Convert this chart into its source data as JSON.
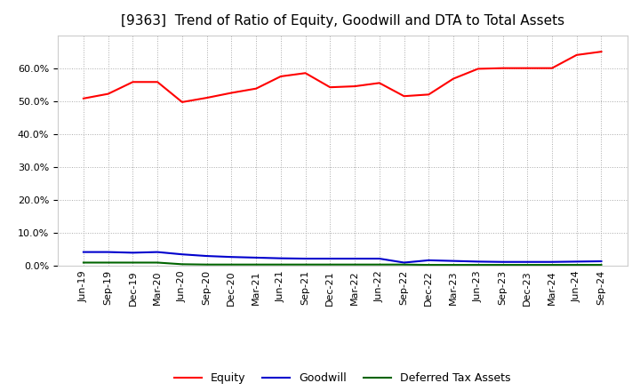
{
  "title": "[9363]  Trend of Ratio of Equity, Goodwill and DTA to Total Assets",
  "x_labels": [
    "Jun-19",
    "Sep-19",
    "Dec-19",
    "Mar-20",
    "Jun-20",
    "Sep-20",
    "Dec-20",
    "Mar-21",
    "Jun-21",
    "Sep-21",
    "Dec-21",
    "Mar-22",
    "Jun-22",
    "Sep-22",
    "Dec-22",
    "Mar-23",
    "Jun-23",
    "Sep-23",
    "Dec-23",
    "Mar-24",
    "Jun-24",
    "Sep-24"
  ],
  "equity": [
    0.508,
    0.522,
    0.558,
    0.558,
    0.497,
    0.51,
    0.525,
    0.538,
    0.575,
    0.585,
    0.542,
    0.545,
    0.555,
    0.515,
    0.52,
    0.568,
    0.598,
    0.6,
    0.6,
    0.6,
    0.64,
    0.65
  ],
  "goodwill": [
    0.042,
    0.042,
    0.04,
    0.042,
    0.035,
    0.03,
    0.027,
    0.025,
    0.023,
    0.022,
    0.022,
    0.022,
    0.022,
    0.01,
    0.017,
    0.015,
    0.013,
    0.012,
    0.012,
    0.012,
    0.013,
    0.014
  ],
  "dta": [
    0.01,
    0.01,
    0.01,
    0.01,
    0.005,
    0.004,
    0.004,
    0.004,
    0.004,
    0.004,
    0.004,
    0.004,
    0.004,
    0.004,
    0.003,
    0.003,
    0.003,
    0.003,
    0.003,
    0.003,
    0.003,
    0.003
  ],
  "equity_color": "#ff0000",
  "goodwill_color": "#0000cd",
  "dta_color": "#006400",
  "ylim": [
    0.0,
    0.7
  ],
  "yticks": [
    0.0,
    0.1,
    0.2,
    0.3,
    0.4,
    0.5,
    0.6
  ],
  "bg_color": "#ffffff",
  "plot_bg_color": "#ffffff",
  "grid_color": "#aaaaaa",
  "title_fontsize": 11,
  "tick_fontsize": 8,
  "legend_labels": [
    "Equity",
    "Goodwill",
    "Deferred Tax Assets"
  ]
}
